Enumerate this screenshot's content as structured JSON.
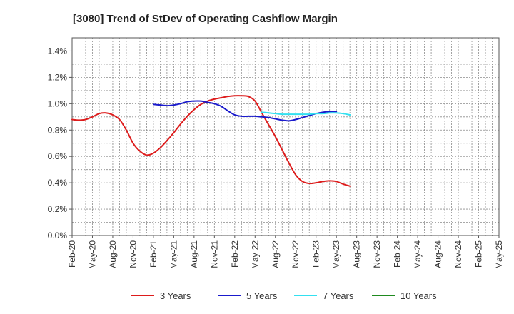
{
  "chart_data": {
    "type": "line",
    "title": "[3080]  Trend of StDev of Operating Cashflow Margin",
    "xlabel": "",
    "ylabel": "",
    "ylim": [
      0,
      1.5
    ],
    "yticks": [
      0,
      0.2,
      0.4,
      0.6,
      0.8,
      1.0,
      1.2,
      1.4
    ],
    "ytick_labels": [
      "0.0%",
      "0.2%",
      "0.4%",
      "0.6%",
      "0.8%",
      "1.0%",
      "1.2%",
      "1.4%"
    ],
    "xtick_labels": [
      "Feb-20",
      "May-20",
      "Aug-20",
      "Nov-20",
      "Feb-21",
      "May-21",
      "Aug-21",
      "Nov-21",
      "Feb-22",
      "May-22",
      "Aug-22",
      "Nov-22",
      "Feb-23",
      "May-23",
      "Aug-23",
      "Nov-23",
      "Feb-24",
      "May-24",
      "Aug-24",
      "Nov-24",
      "Feb-25",
      "May-25"
    ],
    "grid": true,
    "legend_position": "bottom",
    "series": [
      {
        "name": "3 Years",
        "color": "#dd1c1c",
        "start_index": 0,
        "values": [
          0.88,
          0.875,
          0.88,
          0.9,
          0.925,
          0.93,
          0.915,
          0.88,
          0.8,
          0.7,
          0.64,
          0.61,
          0.625,
          0.665,
          0.72,
          0.78,
          0.845,
          0.905,
          0.955,
          0.995,
          1.02,
          1.035,
          1.045,
          1.055,
          1.06,
          1.06,
          1.055,
          1.02,
          0.93,
          0.84,
          0.75,
          0.65,
          0.55,
          0.46,
          0.41,
          0.395,
          0.4,
          0.41,
          0.415,
          0.41,
          0.39,
          0.375
        ]
      },
      {
        "name": "5 Years",
        "color": "#1a1acc",
        "start_index": 12,
        "values": [
          0.995,
          0.99,
          0.985,
          0.99,
          1.0,
          1.015,
          1.02,
          1.02,
          1.01,
          1.0,
          0.98,
          0.945,
          0.915,
          0.905,
          0.905,
          0.905,
          0.9,
          0.895,
          0.885,
          0.875,
          0.87,
          0.88,
          0.895,
          0.91,
          0.925,
          0.935,
          0.94,
          0.94
        ]
      },
      {
        "name": "7 Years",
        "color": "#33e0f0",
        "start_index": 28,
        "values": [
          0.935,
          0.93,
          0.925,
          0.92,
          0.92,
          0.92,
          0.92,
          0.92,
          0.925,
          0.925,
          0.93,
          0.93,
          0.925,
          0.915
        ]
      },
      {
        "name": "10 Years",
        "color": "#1f8a1f",
        "start_index": 0,
        "values": []
      }
    ]
  }
}
